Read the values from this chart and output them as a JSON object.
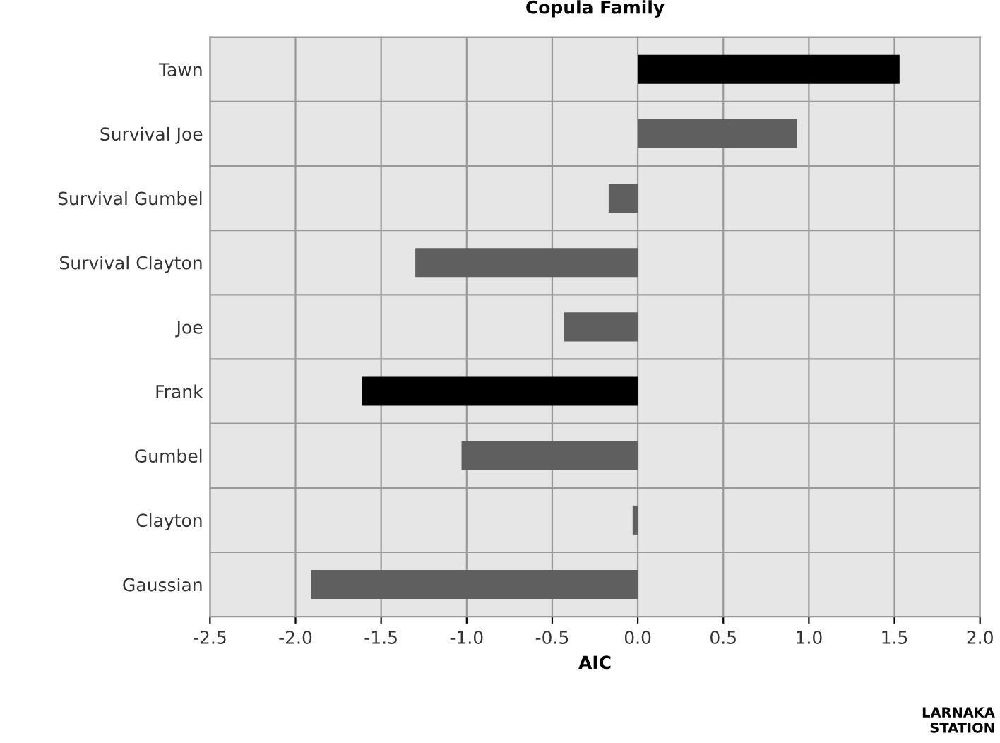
{
  "chart_data": {
    "type": "bar",
    "orientation": "horizontal",
    "title": "Copula Family",
    "xlabel": "AIC",
    "categories": [
      "Tawn",
      "Survival Joe",
      "Survival Gumbel",
      "Survival Clayton",
      "Joe",
      "Frank",
      "Gumbel",
      "Clayton",
      "Gaussian"
    ],
    "values": [
      1.53,
      0.93,
      -0.17,
      -1.3,
      -0.43,
      -1.61,
      -1.03,
      -0.03,
      -1.91
    ],
    "colors": [
      "#000000",
      "#5f5f5f",
      "#5f5f5f",
      "#5f5f5f",
      "#5f5f5f",
      "#000000",
      "#5f5f5f",
      "#5f5f5f",
      "#5f5f5f"
    ],
    "xlim": [
      -2.5,
      2.0
    ],
    "xticks": [
      {
        "value": -2.5,
        "label": "-2.5"
      },
      {
        "value": -2.0,
        "label": "-2.0"
      },
      {
        "value": -1.5,
        "label": "-1.5"
      },
      {
        "value": -1.0,
        "label": "-1.0"
      },
      {
        "value": -0.5,
        "label": "-0.5"
      },
      {
        "value": 0.0,
        "label": "0.0"
      },
      {
        "value": 0.5,
        "label": "0.5"
      },
      {
        "value": 1.0,
        "label": "1.0"
      },
      {
        "value": 1.5,
        "label": "1.5"
      },
      {
        "value": 2.0,
        "label": "2.0"
      }
    ],
    "grid": true,
    "legend": false,
    "annotations": [
      "LARNAKA\nSTATION"
    ]
  }
}
